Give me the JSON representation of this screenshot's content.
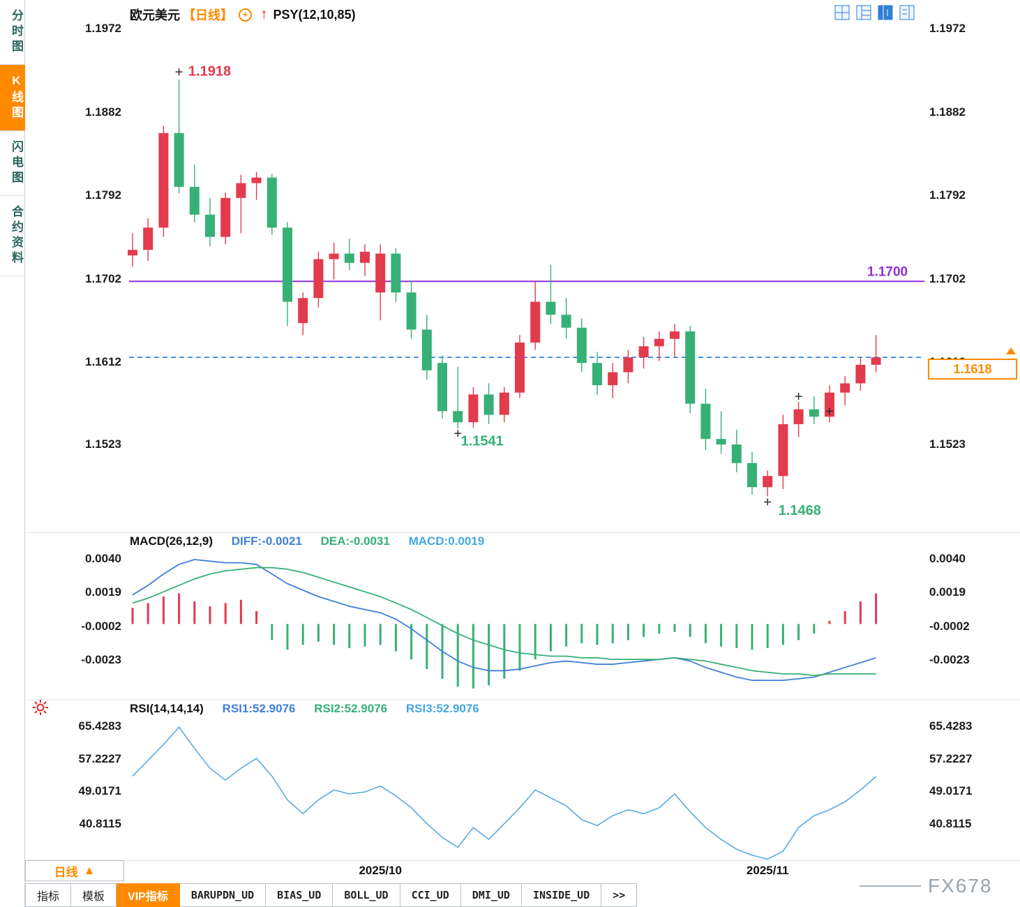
{
  "header": {
    "symbol": "欧元美元",
    "period_tag": "【日线】",
    "add_icon": "+",
    "arrow_icon": "↑",
    "indicator": "PSY(12,10,85)"
  },
  "colors": {
    "up": "#e23b4e",
    "down": "#37b077",
    "purple": "#8e2fd8",
    "dash_blue": "#1f7fe8",
    "accent_orange": "#ff8a00"
  },
  "sidebar": {
    "items": [
      {
        "key": "minutes-chart",
        "label": "分时图",
        "active": false
      },
      {
        "key": "kline-chart",
        "label": "K线图",
        "active": true
      },
      {
        "key": "lightning-chart",
        "label": "闪电图",
        "active": false
      },
      {
        "key": "contract-info",
        "label": "合约资料",
        "active": false
      }
    ]
  },
  "period_selector": {
    "label": "日线",
    "arrow": "▲"
  },
  "bottom_tabs": {
    "items": [
      {
        "label": "指标",
        "active": false,
        "mono": false
      },
      {
        "label": "模板",
        "active": false,
        "mono": false
      },
      {
        "label": "VIP指标",
        "active": true,
        "mono": false
      },
      {
        "label": "BARUPDN_UD",
        "active": false,
        "mono": true
      },
      {
        "label": "BIAS_UD",
        "active": false,
        "mono": true
      },
      {
        "label": "BOLL_UD",
        "active": false,
        "mono": true
      },
      {
        "label": "CCI_UD",
        "active": false,
        "mono": true
      },
      {
        "label": "DMI_UD",
        "active": false,
        "mono": true
      },
      {
        "label": "INSIDE_UD",
        "active": false,
        "mono": true
      },
      {
        "label": ">>",
        "active": false,
        "mono": true
      }
    ]
  },
  "watermark": {
    "text": "FX678"
  },
  "chart_data": [
    {
      "type": "candlestick",
      "name": "price",
      "ylim": [
        1.1433,
        1.1981
      ],
      "y_ticks": [
        "1.1972",
        "1.1882",
        "1.1792",
        "1.1702",
        "1.1612",
        "1.1523"
      ],
      "x_ticks": [
        {
          "label": "2025/10",
          "index": 16
        },
        {
          "label": "2025/11",
          "index": 41
        }
      ],
      "hline": {
        "value": 1.17,
        "label": "1.1700"
      },
      "last_price": {
        "value": 1.1618,
        "label": "1.1618"
      },
      "annotations": [
        {
          "text": "1.1918",
          "index": 3.6,
          "value": 1.1922,
          "color": "#e23b4e"
        },
        {
          "text": "1.1541",
          "index": 21.2,
          "value": 1.1523,
          "color": "#37b077"
        },
        {
          "text": "1.1468",
          "index": 41.7,
          "value": 1.1448,
          "color": "#37b077"
        }
      ],
      "markers": [
        {
          "index": 3,
          "value": 1.1926
        },
        {
          "index": 21,
          "value": 1.1536
        },
        {
          "index": 41,
          "value": 1.1462
        },
        {
          "index": 43,
          "value": 1.1576
        },
        {
          "index": 45,
          "value": 1.156
        }
      ],
      "candles": [
        [
          1.1728,
          1.1752,
          1.1716,
          1.1734
        ],
        [
          1.1734,
          1.1768,
          1.1722,
          1.1758
        ],
        [
          1.1758,
          1.1868,
          1.1748,
          1.186
        ],
        [
          1.186,
          1.1918,
          1.1795,
          1.1802
        ],
        [
          1.1802,
          1.1826,
          1.1764,
          1.1772
        ],
        [
          1.1772,
          1.179,
          1.1738,
          1.1748
        ],
        [
          1.1748,
          1.1796,
          1.174,
          1.179
        ],
        [
          1.179,
          1.1815,
          1.1752,
          1.1806
        ],
        [
          1.1806,
          1.1818,
          1.1788,
          1.1812
        ],
        [
          1.1812,
          1.1816,
          1.175,
          1.1758
        ],
        [
          1.1758,
          1.1764,
          1.1652,
          1.1678
        ],
        [
          1.1655,
          1.1688,
          1.1642,
          1.1682
        ],
        [
          1.1682,
          1.1732,
          1.1672,
          1.1724
        ],
        [
          1.1724,
          1.1742,
          1.1702,
          1.173
        ],
        [
          1.173,
          1.1746,
          1.1712,
          1.172
        ],
        [
          1.172,
          1.174,
          1.1706,
          1.1732
        ],
        [
          1.1688,
          1.174,
          1.1658,
          1.173
        ],
        [
          1.173,
          1.1736,
          1.1678,
          1.1688
        ],
        [
          1.1688,
          1.17,
          1.1638,
          1.1648
        ],
        [
          1.1648,
          1.1664,
          1.1594,
          1.1604
        ],
        [
          1.1612,
          1.162,
          1.1552,
          1.156
        ],
        [
          1.156,
          1.1608,
          1.1541,
          1.1548
        ],
        [
          1.1548,
          1.1586,
          1.1542,
          1.1578
        ],
        [
          1.1578,
          1.159,
          1.1546,
          1.1556
        ],
        [
          1.1556,
          1.1586,
          1.1548,
          1.158
        ],
        [
          1.158,
          1.1642,
          1.1574,
          1.1634
        ],
        [
          1.1634,
          1.17,
          1.1626,
          1.1678
        ],
        [
          1.1678,
          1.1718,
          1.1654,
          1.1664
        ],
        [
          1.1664,
          1.1682,
          1.1638,
          1.165
        ],
        [
          1.165,
          1.166,
          1.1602,
          1.1612
        ],
        [
          1.1612,
          1.1624,
          1.1578,
          1.1588
        ],
        [
          1.1588,
          1.1612,
          1.1574,
          1.1602
        ],
        [
          1.1602,
          1.1626,
          1.159,
          1.1618
        ],
        [
          1.1618,
          1.164,
          1.1606,
          1.163
        ],
        [
          1.163,
          1.1646,
          1.1614,
          1.1638
        ],
        [
          1.1638,
          1.1654,
          1.1618,
          1.1646
        ],
        [
          1.1646,
          1.1652,
          1.1558,
          1.1568
        ],
        [
          1.1568,
          1.1584,
          1.1518,
          1.153
        ],
        [
          1.153,
          1.156,
          1.1514,
          1.1524
        ],
        [
          1.1524,
          1.154,
          1.1494,
          1.1504
        ],
        [
          1.1504,
          1.1516,
          1.147,
          1.1478
        ],
        [
          1.1478,
          1.1496,
          1.1468,
          1.149
        ],
        [
          1.149,
          1.1556,
          1.1476,
          1.1546
        ],
        [
          1.1546,
          1.157,
          1.1532,
          1.1562
        ],
        [
          1.1562,
          1.1576,
          1.1546,
          1.1554
        ],
        [
          1.1554,
          1.1588,
          1.1548,
          1.158
        ],
        [
          1.158,
          1.1598,
          1.1566,
          1.159
        ],
        [
          1.159,
          1.1618,
          1.1582,
          1.161
        ],
        [
          1.161,
          1.1642,
          1.1602,
          1.1618
        ]
      ]
    },
    {
      "type": "bar",
      "name": "macd",
      "title": "MACD(26,12,9)",
      "legend": {
        "diff": "DIFF:-0.0021",
        "dea": "DEA:-0.0031",
        "macd": "MACD:0.0019"
      },
      "ylim": [
        -0.00436,
        0.00452
      ],
      "y_ticks": [
        "0.0040",
        "0.0019",
        "-0.0002",
        "-0.0023"
      ],
      "histogram": [
        0.001,
        0.0013,
        0.0017,
        0.0019,
        0.0014,
        0.0011,
        0.0013,
        0.0015,
        0.0008,
        -0.001,
        -0.0016,
        -0.0013,
        -0.0011,
        -0.0013,
        -0.0015,
        -0.0014,
        -0.0013,
        -0.0017,
        -0.0022,
        -0.0028,
        -0.0034,
        -0.0039,
        -0.004,
        -0.0038,
        -0.0034,
        -0.0029,
        -0.0022,
        -0.0017,
        -0.0014,
        -0.0012,
        -0.0013,
        -0.0012,
        -0.001,
        -0.0008,
        -0.0006,
        -0.0005,
        -0.0008,
        -0.0012,
        -0.0014,
        -0.0015,
        -0.0016,
        -0.0015,
        -0.0013,
        -0.001,
        -0.0006,
        0.0002,
        0.0008,
        0.0014,
        0.0019
      ],
      "series": [
        {
          "name": "DIFF",
          "color": "#3f7fd9",
          "values": [
            0.0018,
            0.0024,
            0.0031,
            0.0037,
            0.004,
            0.0039,
            0.0038,
            0.0038,
            0.0037,
            0.0031,
            0.0025,
            0.0021,
            0.0017,
            0.0014,
            0.0011,
            0.0009,
            0.0007,
            0.0003,
            -0.0003,
            -0.001,
            -0.0017,
            -0.0023,
            -0.0027,
            -0.0029,
            -0.0029,
            -0.0028,
            -0.0026,
            -0.0024,
            -0.0023,
            -0.0024,
            -0.0025,
            -0.0025,
            -0.0024,
            -0.0023,
            -0.0022,
            -0.0021,
            -0.0023,
            -0.0027,
            -0.003,
            -0.0033,
            -0.0035,
            -0.0035,
            -0.0035,
            -0.0034,
            -0.0033,
            -0.003,
            -0.0027,
            -0.0024,
            -0.0021
          ]
        },
        {
          "name": "DEA",
          "color": "#37b077",
          "values": [
            0.0013,
            0.0016,
            0.002,
            0.0024,
            0.0028,
            0.0031,
            0.0033,
            0.0034,
            0.0035,
            0.0035,
            0.0034,
            0.0032,
            0.0029,
            0.0026,
            0.0023,
            0.002,
            0.0017,
            0.0013,
            0.0009,
            0.0004,
            -0.0001,
            -0.0006,
            -0.001,
            -0.0013,
            -0.0016,
            -0.0018,
            -0.0019,
            -0.002,
            -0.002,
            -0.0021,
            -0.0021,
            -0.0022,
            -0.0022,
            -0.0022,
            -0.0022,
            -0.0021,
            -0.0022,
            -0.0023,
            -0.0025,
            -0.0027,
            -0.0029,
            -0.003,
            -0.0031,
            -0.0031,
            -0.0032,
            -0.0031,
            -0.0031,
            -0.0031,
            -0.0031
          ]
        }
      ]
    },
    {
      "type": "line",
      "name": "rsi",
      "title": "RSI(14,14,14)",
      "legend": {
        "rsi1": "RSI1:52.9076",
        "rsi2": "RSI2:52.9076",
        "rsi3": "RSI3:52.9076"
      },
      "ylim": [
        31.9,
        67.55
      ],
      "y_ticks": [
        "65.4283",
        "57.2227",
        "49.0171",
        "40.8115"
      ],
      "series": [
        {
          "name": "RSI1",
          "color": "#5aabdf",
          "values": [
            53,
            57,
            61,
            65.4,
            60,
            55,
            52,
            55,
            57.5,
            53,
            47,
            43.5,
            47,
            49.5,
            48.5,
            49,
            50.5,
            48,
            45,
            41,
            37.5,
            35,
            40,
            37,
            41,
            45,
            49.5,
            47.5,
            45.5,
            42,
            40.5,
            43,
            44.5,
            43.5,
            45,
            48.5,
            44,
            40,
            37,
            34.5,
            33,
            32,
            34,
            40,
            43,
            44.5,
            46.5,
            49.5,
            52.9
          ]
        }
      ]
    }
  ]
}
